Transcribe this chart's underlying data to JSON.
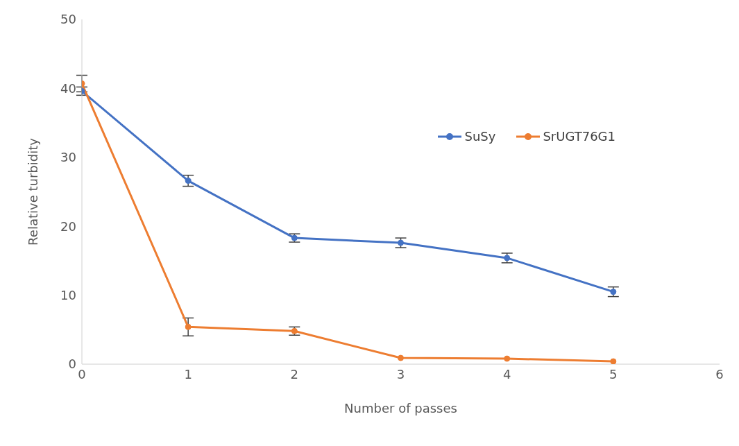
{
  "chart_data": {
    "type": "line",
    "xlabel": "Number of passes",
    "ylabel": "Relative turbidity",
    "x": [
      0,
      1,
      2,
      3,
      4,
      5
    ],
    "series": [
      {
        "name": "SuSy",
        "color": "#4472c4",
        "values": [
          39.6,
          26.6,
          18.3,
          17.6,
          15.4,
          10.5
        ],
        "errors": [
          0.6,
          0.8,
          0.6,
          0.7,
          0.7,
          0.7
        ]
      },
      {
        "name": "SrUGT76G1",
        "color": "#ed7d31",
        "values": [
          40.7,
          5.4,
          4.8,
          0.9,
          0.8,
          0.4
        ],
        "errors": [
          1.2,
          1.3,
          0.6,
          null,
          null,
          null
        ]
      }
    ],
    "xlim": [
      0,
      6
    ],
    "xticks": [
      0,
      1,
      2,
      3,
      4,
      5,
      6
    ],
    "ylim": [
      0,
      50
    ],
    "yticks": [
      0,
      10,
      20,
      30,
      40,
      50
    ],
    "legend": "top right",
    "marker": "circle"
  }
}
